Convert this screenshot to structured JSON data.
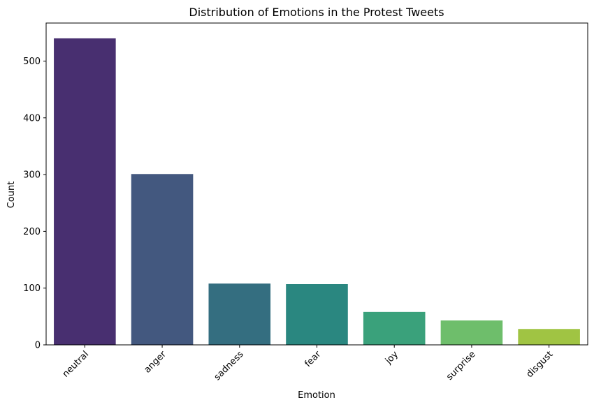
{
  "chart_data": {
    "type": "bar",
    "title": "Distribution of Emotions in the Protest Tweets",
    "xlabel": "Emotion",
    "ylabel": "Count",
    "categories": [
      "neutral",
      "anger",
      "sadness",
      "fear",
      "joy",
      "surprise",
      "disgust"
    ],
    "values": [
      540,
      301,
      108,
      107,
      58,
      43,
      28
    ],
    "colors": [
      "#482f70",
      "#43587f",
      "#346e80",
      "#2a8780",
      "#3aa17b",
      "#6ebe6b",
      "#a0c443"
    ],
    "ylim": [
      0,
      567
    ],
    "yticks": [
      0,
      100,
      200,
      300,
      400,
      500
    ],
    "grid": false,
    "legend": "none",
    "xtick_rotation": 45
  }
}
